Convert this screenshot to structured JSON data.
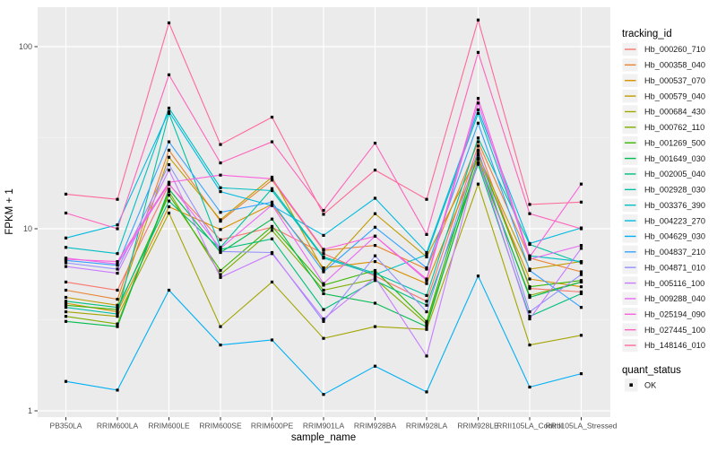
{
  "chart_data": {
    "type": "line",
    "title": "",
    "xlabel": "sample_name",
    "ylabel": "FPKM + 1",
    "y_scale": "log10",
    "y_ticks": [
      1,
      10,
      100
    ],
    "y_minor_ticks": [
      3.162,
      31.62
    ],
    "ylim": [
      0.92,
      165
    ],
    "grid": true,
    "legend_position": "right",
    "x_categories": [
      "PB350LA",
      "RRIM600LA",
      "RRIM600LE",
      "RRIM600SE",
      "RRIM600PE",
      "RRIM901LA",
      "RRIM928BA",
      "RRIM928LA",
      "RRIM928LE",
      "RRII105LA_Control",
      "RRII105LA_Stressed"
    ],
    "legend_title": "tracking_id",
    "series": [
      {
        "name": "Hb_000260_710",
        "color": "#F8766D",
        "values": [
          5.1,
          4.6,
          17.5,
          8.7,
          10.2,
          7.3,
          5.5,
          4.0,
          28.5,
          4.7,
          4.5
        ]
      },
      {
        "name": "Hb_000358_040",
        "color": "#EA8331",
        "values": [
          4.6,
          4.1,
          27.0,
          11.0,
          18.5,
          7.6,
          8.1,
          6.0,
          30.0,
          6.9,
          5.8
        ]
      },
      {
        "name": "Hb_000537_070",
        "color": "#D89000",
        "values": [
          3.9,
          3.5,
          13.2,
          9.9,
          13.6,
          6.1,
          6.6,
          5.0,
          24.5,
          5.3,
          4.8
        ]
      },
      {
        "name": "Hb_000579_040",
        "color": "#C09B00",
        "values": [
          4.2,
          3.8,
          24.7,
          11.2,
          19.2,
          5.9,
          12.1,
          7.0,
          25.5,
          6.0,
          6.6
        ]
      },
      {
        "name": "Hb_000684_430",
        "color": "#A3A500",
        "values": [
          3.5,
          3.3,
          12.2,
          2.9,
          5.1,
          2.5,
          2.9,
          2.8,
          17.6,
          2.3,
          2.6
        ]
      },
      {
        "name": "Hb_000762_110",
        "color": "#7CAE00",
        "values": [
          3.3,
          3.0,
          16.0,
          5.6,
          9.8,
          4.6,
          5.3,
          3.0,
          23.0,
          4.3,
          5.1
        ]
      },
      {
        "name": "Hb_001269_500",
        "color": "#39B600",
        "values": [
          3.8,
          3.6,
          15.3,
          5.9,
          10.3,
          4.9,
          5.9,
          3.1,
          26.0,
          4.8,
          5.2
        ]
      },
      {
        "name": "Hb_001649_030",
        "color": "#00BB4E",
        "values": [
          3.1,
          2.9,
          16.5,
          7.4,
          11.3,
          4.4,
          3.9,
          2.9,
          24.0,
          4.2,
          5.1
        ]
      },
      {
        "name": "Hb_002005_040",
        "color": "#00BF7D",
        "values": [
          4.0,
          3.7,
          14.2,
          7.7,
          8.8,
          3.6,
          5.2,
          3.8,
          22.6,
          3.3,
          4.4
        ]
      },
      {
        "name": "Hb_002928_030",
        "color": "#00C1A3",
        "values": [
          3.7,
          3.4,
          43.0,
          7.9,
          16.6,
          7.0,
          5.7,
          4.3,
          31.5,
          8.2,
          6.5
        ]
      },
      {
        "name": "Hb_003376_390",
        "color": "#00BFC4",
        "values": [
          7.9,
          7.3,
          46.0,
          16.8,
          16.2,
          6.9,
          5.6,
          7.2,
          43.0,
          7.1,
          6.6
        ]
      },
      {
        "name": "Hb_004223_270",
        "color": "#00BAE0",
        "values": [
          8.9,
          10.5,
          44.0,
          16.0,
          13.4,
          9.2,
          14.7,
          7.4,
          45.0,
          8.3,
          10.1
        ]
      },
      {
        "name": "Hb_004629_030",
        "color": "#00B0F6",
        "values": [
          1.45,
          1.3,
          4.6,
          2.3,
          2.45,
          1.23,
          1.76,
          1.27,
          5.5,
          1.35,
          1.6
        ]
      },
      {
        "name": "Hb_004837_210",
        "color": "#35A2FF",
        "values": [
          6.7,
          6.3,
          30.0,
          12.3,
          14.0,
          5.8,
          10.2,
          6.1,
          38.0,
          5.9,
          3.7
        ]
      },
      {
        "name": "Hb_004871_010",
        "color": "#9590FF",
        "values": [
          6.5,
          6.0,
          22.5,
          7.5,
          7.4,
          3.1,
          7.1,
          3.5,
          27.0,
          3.5,
          5.6
        ]
      },
      {
        "name": "Hb_005116_100",
        "color": "#C77CFF",
        "values": [
          6.2,
          5.7,
          21.0,
          5.4,
          7.3,
          3.2,
          5.4,
          2.0,
          24.0,
          3.2,
          7.8
        ]
      },
      {
        "name": "Hb_009288_040",
        "color": "#E76BF3",
        "values": [
          6.9,
          6.4,
          17.7,
          7.8,
          13.5,
          5.0,
          9.1,
          5.2,
          49.0,
          6.8,
          8.1
        ]
      },
      {
        "name": "Hb_025194_090",
        "color": "#FA62DB",
        "values": [
          6.8,
          6.6,
          18.0,
          19.7,
          18.8,
          7.7,
          9.1,
          5.3,
          52.0,
          7.0,
          17.6
        ]
      },
      {
        "name": "Hb_027445_100",
        "color": "#FF62BC",
        "values": [
          12.2,
          10.0,
          70.0,
          23.0,
          30.0,
          12.6,
          29.5,
          9.3,
          93.0,
          12.1,
          10.0
        ]
      },
      {
        "name": "Hb_148146_010",
        "color": "#FF6A98",
        "values": [
          15.5,
          14.5,
          135.0,
          29.0,
          41.0,
          12.0,
          21.0,
          14.5,
          140.0,
          13.6,
          14.0
        ]
      }
    ],
    "legend2_title": "quant_status",
    "legend2_items": [
      {
        "label": "OK",
        "marker": "black-square"
      }
    ],
    "point_marker": "black-square"
  },
  "labels": {
    "x_axis_title": "sample_name",
    "y_axis_title": "FPKM + 1",
    "legend_title": "tracking_id",
    "legend2_title": "quant_status",
    "quant_ok_label": "OK"
  },
  "style": {
    "panel_bg": "#EBEBEB",
    "grid_major": "#FFFFFF",
    "grid_minor": "#F5F5F5",
    "axis_text_color": "#4D4D4D",
    "title_text_color": "#000000",
    "legend_key_bg": "#F2F2F2",
    "point_color": "#000000"
  }
}
